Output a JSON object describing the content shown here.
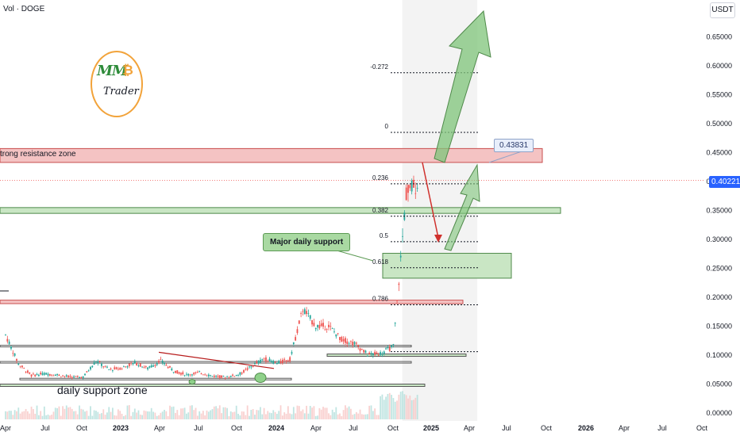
{
  "header": {
    "left_label": "Vol · DOGE",
    "currency": "USDT"
  },
  "current_price": "0.40221",
  "callout_price": "0.43831",
  "logo": {
    "mm": "MM",
    "btc": "₿",
    "trader": "Trader"
  },
  "annotations": {
    "resistance_zone": "trong resistance zone",
    "support_zone": "daily support zone",
    "major_support": "Major daily support"
  },
  "fib_levels": [
    {
      "label": "-0.272",
      "price": 0.588
    },
    {
      "label": "0",
      "price": 0.485
    },
    {
      "label": "0.236",
      "price": 0.396
    },
    {
      "label": "0.382",
      "price": 0.34
    },
    {
      "label": "0.5",
      "price": 0.296
    },
    {
      "label": "0.618",
      "price": 0.251
    },
    {
      "label": "0.786",
      "price": 0.187
    },
    {
      "label": "1",
      "price": 0.106
    }
  ],
  "colors": {
    "resistance_fill": "#f4c3c3",
    "resistance_stroke": "#c94f4f",
    "support_fill": "#c9e6c4",
    "support_stroke": "#4f8a4a",
    "arrow_green": "#7fc47a",
    "arrow_red": "#d0312d",
    "candle_up": "#26a69a",
    "candle_down": "#ef5350",
    "projection_fill": "#f3f3f3",
    "price_line": "#ef5350"
  },
  "chart_data": {
    "type": "line",
    "ylim": [
      0,
      0.68
    ],
    "y_ticks": [
      "0.65000",
      "0.60000",
      "0.55000",
      "0.50000",
      "0.45000",
      "0.40000",
      "0.35000",
      "0.30000",
      "0.25000",
      "0.20000",
      "0.15000",
      "0.10000",
      "0.05000",
      "0.00000"
    ],
    "x_ticks": [
      "Apr",
      "Jul",
      "Oct",
      "2023",
      "Apr",
      "Jul",
      "Oct",
      "2024",
      "Apr",
      "Jul",
      "Oct",
      "2025",
      "Apr",
      "Jul",
      "Oct",
      "2026",
      "Apr",
      "Jul",
      "Oct"
    ],
    "series": [
      {
        "x": [
          "2022-04",
          "2022-05",
          "2022-06",
          "2022-07",
          "2022-08",
          "2022-09",
          "2022-10",
          "2022-11",
          "2022-12",
          "2023-01",
          "2023-02",
          "2023-03",
          "2023-04",
          "2023-05",
          "2023-06",
          "2023-07",
          "2023-08",
          "2023-09",
          "2023-10",
          "2023-11",
          "2023-12",
          "2024-01",
          "2024-02",
          "2024-03",
          "2024-04",
          "2024-05",
          "2024-06",
          "2024-07",
          "2024-08",
          "2024-09",
          "2024-10",
          "2024-11",
          "2024-12"
        ],
        "values": [
          0.135,
          0.085,
          0.065,
          0.068,
          0.066,
          0.062,
          0.062,
          0.09,
          0.075,
          0.078,
          0.087,
          0.077,
          0.09,
          0.073,
          0.066,
          0.07,
          0.064,
          0.062,
          0.066,
          0.08,
          0.094,
          0.086,
          0.093,
          0.18,
          0.15,
          0.15,
          0.127,
          0.12,
          0.101,
          0.103,
          0.115,
          0.38,
          0.4
        ]
      }
    ],
    "projection": [
      {
        "x": "2024-12",
        "y": 0.43831
      },
      {
        "x": "2025-01",
        "y": 0.3
      },
      {
        "x": "2025-02",
        "y": 0.43831
      }
    ],
    "target_up": {
      "x": "2025-01",
      "y": 0.65
    }
  }
}
